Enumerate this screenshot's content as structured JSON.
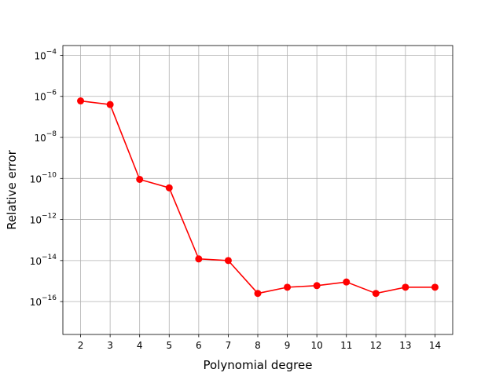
{
  "chart_data": {
    "type": "line",
    "title": "",
    "xlabel": "Polynomial degree",
    "ylabel": "Relative error",
    "x": [
      2,
      3,
      4,
      5,
      6,
      7,
      8,
      9,
      10,
      11,
      12,
      13,
      14
    ],
    "series": [
      {
        "values": [
          6e-07,
          4e-07,
          9e-11,
          3.5e-11,
          1.2e-14,
          1e-14,
          2.5e-16,
          5e-16,
          6e-16,
          9e-16,
          2.5e-16,
          5e-16,
          5e-16
        ],
        "color": "#ff0000",
        "marker": "circle"
      }
    ],
    "xticks": [
      2,
      3,
      4,
      5,
      6,
      7,
      8,
      9,
      10,
      11,
      12,
      13,
      14
    ],
    "yticks": [
      {
        "exp": -16,
        "base": "10",
        "sup": "−16"
      },
      {
        "exp": -14,
        "base": "10",
        "sup": "−14"
      },
      {
        "exp": -12,
        "base": "10",
        "sup": "−12"
      },
      {
        "exp": -10,
        "base": "10",
        "sup": "−10"
      },
      {
        "exp": -8,
        "base": "10",
        "sup": "−8"
      },
      {
        "exp": -6,
        "base": "10",
        "sup": "−6"
      },
      {
        "exp": -4,
        "base": "10",
        "sup": "−4"
      }
    ],
    "xlim": [
      1.4,
      14.6
    ],
    "ylim": [
      2.5e-18,
      0.0003
    ],
    "yscale": "log",
    "grid": true,
    "grid_color": "#b0b0b0"
  }
}
